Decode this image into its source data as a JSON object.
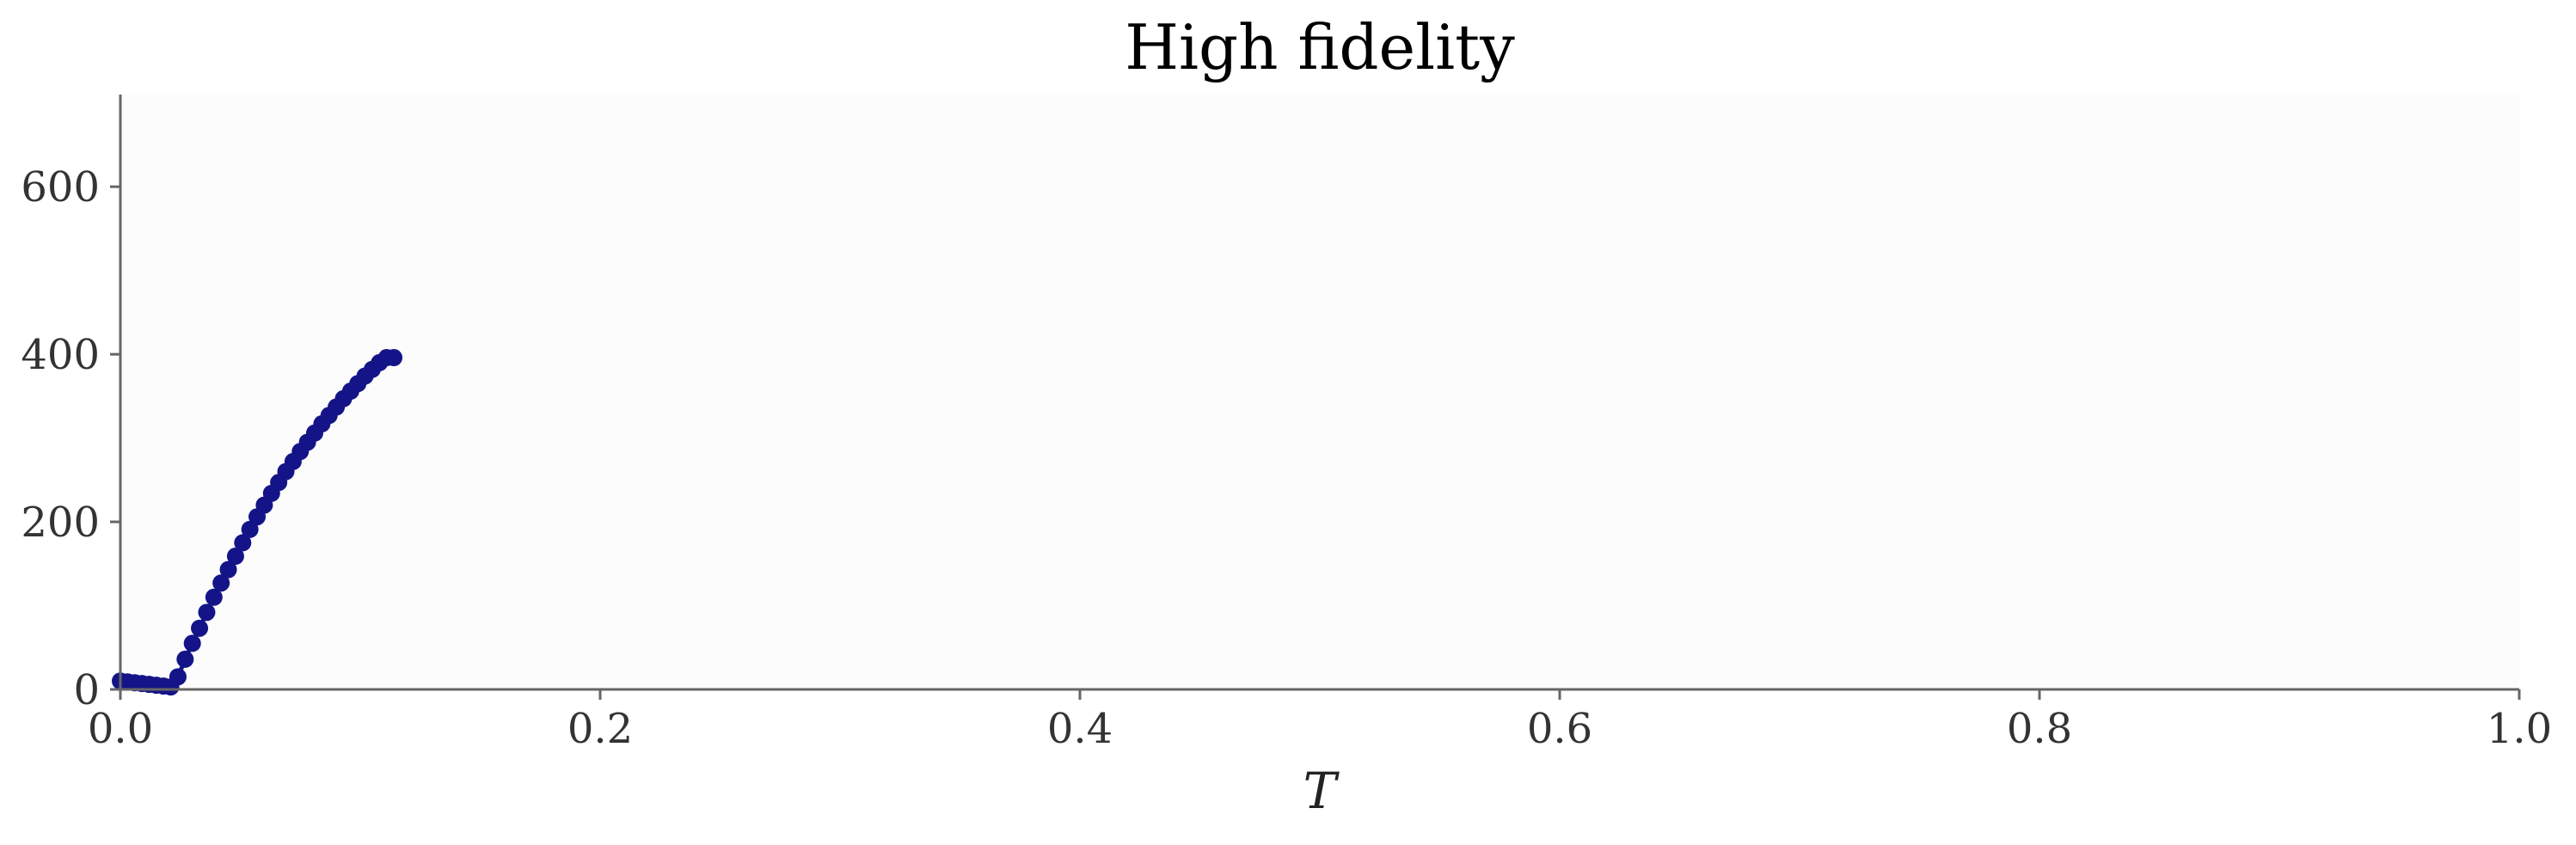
{
  "chart_data": {
    "type": "line",
    "title": "High fidelity",
    "xlabel": "T",
    "ylabel": "",
    "xlim": [
      0.0,
      1.0
    ],
    "ylim": [
      0,
      710
    ],
    "xticks": [
      0.0,
      0.2,
      0.4,
      0.6,
      0.8,
      1.0
    ],
    "xtick_labels": [
      "0.0",
      "0.2",
      "0.4",
      "0.6",
      "0.8",
      "1.0"
    ],
    "yticks": [
      0,
      200,
      400,
      600
    ],
    "ytick_labels": [
      "0",
      "200",
      "400",
      "600"
    ],
    "grid": false,
    "legend": "none",
    "series": [
      {
        "color": "#141488",
        "marker": "circle",
        "x": [
          0.0,
          0.003,
          0.006,
          0.009,
          0.012,
          0.015,
          0.018,
          0.021,
          0.024,
          0.027,
          0.03,
          0.033,
          0.036,
          0.039,
          0.042,
          0.045,
          0.048,
          0.051,
          0.054,
          0.057,
          0.06,
          0.063,
          0.066,
          0.069,
          0.072,
          0.075,
          0.078,
          0.081,
          0.084,
          0.087,
          0.09,
          0.093,
          0.096,
          0.099,
          0.102,
          0.105,
          0.108,
          0.111,
          0.114
        ],
        "y": [
          10,
          9,
          8,
          7,
          6,
          5,
          4,
          3,
          15,
          36,
          55,
          73,
          92,
          110,
          127,
          143,
          159,
          175,
          191,
          206,
          220,
          234,
          247,
          260,
          272,
          284,
          295,
          306,
          317,
          327,
          337,
          347,
          356,
          365,
          374,
          382,
          390,
          396,
          396
        ]
      }
    ]
  }
}
